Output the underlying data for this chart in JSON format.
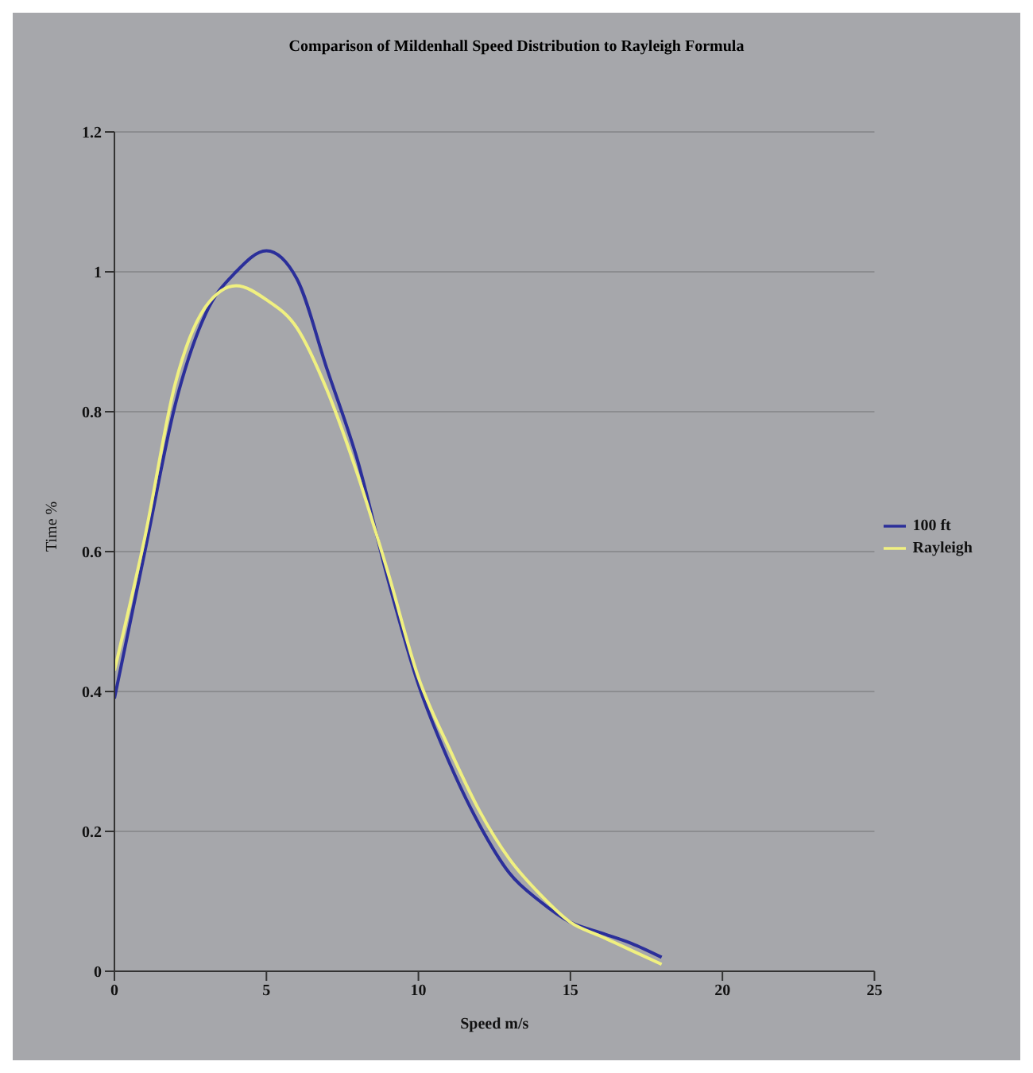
{
  "chart_data": {
    "type": "line",
    "title": "Comparison of Mildenhall Speed Distribution to Rayleigh Formula",
    "xlabel": "Speed m/s",
    "ylabel": "Time %",
    "x": [
      0,
      1,
      2,
      3,
      4,
      5,
      6,
      7,
      8,
      9,
      10,
      11,
      12,
      13,
      14,
      15,
      16,
      17,
      18
    ],
    "series": [
      {
        "name": "100 ft",
        "color": "#2b2f9a",
        "values": [
          0.39,
          0.6,
          0.81,
          0.94,
          1.0,
          1.03,
          0.99,
          0.86,
          0.73,
          0.56,
          0.41,
          0.3,
          0.21,
          0.14,
          0.1,
          0.07,
          0.055,
          0.04,
          0.02
        ]
      },
      {
        "name": "Rayleigh",
        "color": "#f0f080",
        "values": [
          0.43,
          0.62,
          0.84,
          0.95,
          0.98,
          0.96,
          0.92,
          0.83,
          0.71,
          0.57,
          0.42,
          0.32,
          0.23,
          0.16,
          0.11,
          0.07,
          0.05,
          0.03,
          0.01
        ]
      }
    ],
    "xlim": [
      0,
      25
    ],
    "xticks": [
      0,
      5,
      10,
      15,
      20,
      25
    ],
    "ylim": [
      0,
      1.2
    ],
    "yticks": [
      0,
      0.2,
      0.4,
      0.6,
      0.8,
      1,
      1.2
    ],
    "grid": "y",
    "legend": "right",
    "marker": "none",
    "line_style": "solid"
  }
}
